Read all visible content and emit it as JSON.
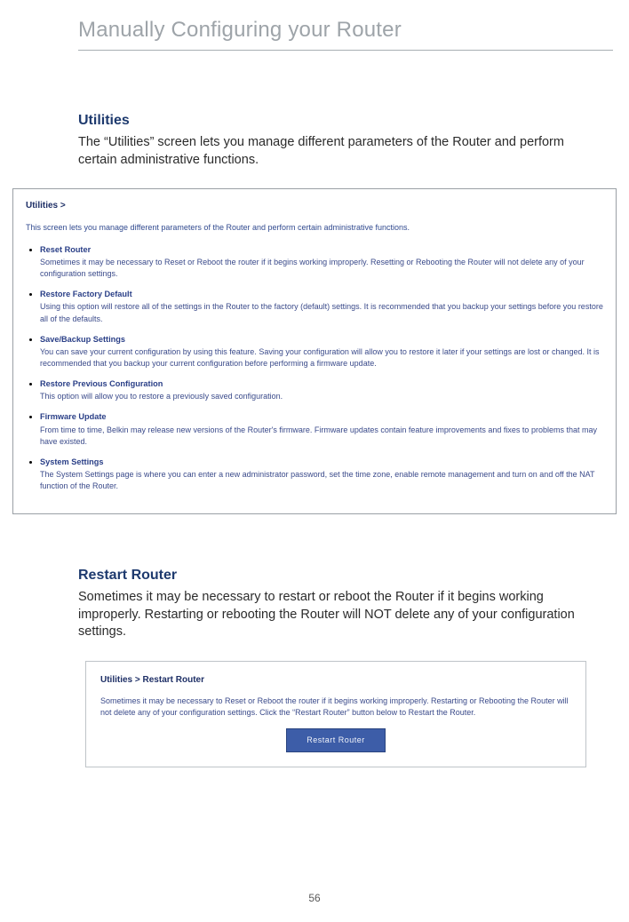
{
  "page": {
    "title": "Manually Configuring your Router",
    "page_number": "56"
  },
  "utilities_section": {
    "heading": "Utilities",
    "body": "The “Utilities” screen lets you manage different parameters of the Router and perform certain administrative functions."
  },
  "utilities_screenshot": {
    "title": "Utilities >",
    "intro": "This screen lets you manage different parameters of the Router and perform certain administrative functions.",
    "items": [
      {
        "title": "Reset Router",
        "desc": "Sometimes it may be necessary to Reset or Reboot the router if it begins working improperly. Resetting or Rebooting the Router will not delete any of your configuration settings."
      },
      {
        "title": "Restore Factory Default",
        "desc": "Using this option will restore all of the settings in the Router to the factory (default) settings. It is recommended that you backup your settings before you restore all of the defaults."
      },
      {
        "title": "Save/Backup Settings",
        "desc": "You can save your current configuration by using this feature. Saving your configuration will allow you to restore it later if your settings are lost or changed. It is recommended that you backup your current configuration before performing a firmware update."
      },
      {
        "title": "Restore Previous Configuration",
        "desc": "This option will allow you to restore a previously saved configuration."
      },
      {
        "title": "Firmware Update",
        "desc": "From time to time, Belkin may release new versions of the Router's firmware. Firmware updates contain feature improvements and fixes to problems that may have existed."
      },
      {
        "title": "System Settings",
        "desc": "The System Settings page is where you can enter a new administrator password, set the time zone, enable remote management and turn on and off the NAT function of the Router."
      }
    ]
  },
  "restart_section": {
    "heading": "Restart Router",
    "body": "Sometimes it may be necessary to restart or reboot the Router if it begins working improperly. Restarting or rebooting the Router will NOT delete any of your configuration settings."
  },
  "restart_screenshot": {
    "title": "Utilities > Restart Router",
    "body": "Sometimes it may be necessary to Reset or Reboot the router if it begins working improperly. Restarting or Rebooting the Router will not delete any of your configuration settings. Click the “Restart Router” button below to Restart the Router.",
    "button_label": "Restart Router"
  },
  "colors": {
    "title_gray": "#9ea4a9",
    "heading_blue": "#1e3a6e",
    "link_blue": "#2a3f87",
    "desc_blue": "#3a4a8a",
    "button_bg": "#3d5da8",
    "button_border": "#2a447f",
    "rule_gray": "#a8aeb3"
  }
}
